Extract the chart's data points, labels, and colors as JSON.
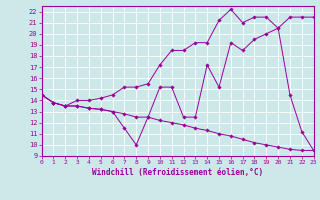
{
  "xlabel": "Windchill (Refroidissement éolien,°C)",
  "xlim": [
    0,
    23
  ],
  "ylim": [
    9,
    22.5
  ],
  "yticks": [
    9,
    10,
    11,
    12,
    13,
    14,
    15,
    16,
    17,
    18,
    19,
    20,
    21,
    22
  ],
  "xticks": [
    0,
    1,
    2,
    3,
    4,
    5,
    6,
    7,
    8,
    9,
    10,
    11,
    12,
    13,
    14,
    15,
    16,
    17,
    18,
    19,
    20,
    21,
    22,
    23
  ],
  "bg_color": "#cce8e8",
  "line_color": "#990099",
  "line1_x": [
    0,
    1,
    2,
    3,
    4,
    5,
    6,
    7,
    8,
    9,
    10,
    11,
    12,
    13,
    14,
    15,
    16,
    17,
    18,
    19,
    20,
    21,
    22,
    23
  ],
  "line1_y": [
    14.5,
    13.8,
    13.5,
    13.5,
    13.3,
    13.2,
    13.0,
    12.8,
    12.5,
    12.5,
    12.2,
    12.0,
    11.8,
    11.5,
    11.3,
    11.0,
    10.8,
    10.5,
    10.2,
    10.0,
    9.8,
    9.6,
    9.5,
    9.5
  ],
  "line2_x": [
    0,
    1,
    2,
    3,
    4,
    5,
    6,
    7,
    8,
    9,
    10,
    11,
    12,
    13,
    14,
    15,
    16,
    17,
    18,
    19,
    20,
    21,
    22,
    23
  ],
  "line2_y": [
    14.5,
    13.8,
    13.5,
    14.0,
    14.0,
    14.2,
    14.5,
    15.2,
    15.2,
    15.5,
    17.2,
    18.5,
    18.5,
    19.2,
    19.2,
    21.2,
    22.2,
    21.0,
    21.5,
    21.5,
    20.5,
    21.5,
    21.5,
    21.5
  ],
  "line3_x": [
    0,
    1,
    2,
    3,
    4,
    5,
    6,
    7,
    8,
    9,
    10,
    11,
    12,
    13,
    14,
    15,
    16,
    17,
    18,
    19,
    20,
    21,
    22,
    23
  ],
  "line3_y": [
    14.5,
    13.8,
    13.5,
    13.5,
    13.3,
    13.2,
    13.0,
    11.5,
    10.0,
    12.5,
    15.2,
    15.2,
    12.5,
    12.5,
    17.2,
    15.2,
    19.2,
    18.5,
    19.5,
    20.0,
    20.5,
    14.5,
    11.2,
    9.5
  ]
}
